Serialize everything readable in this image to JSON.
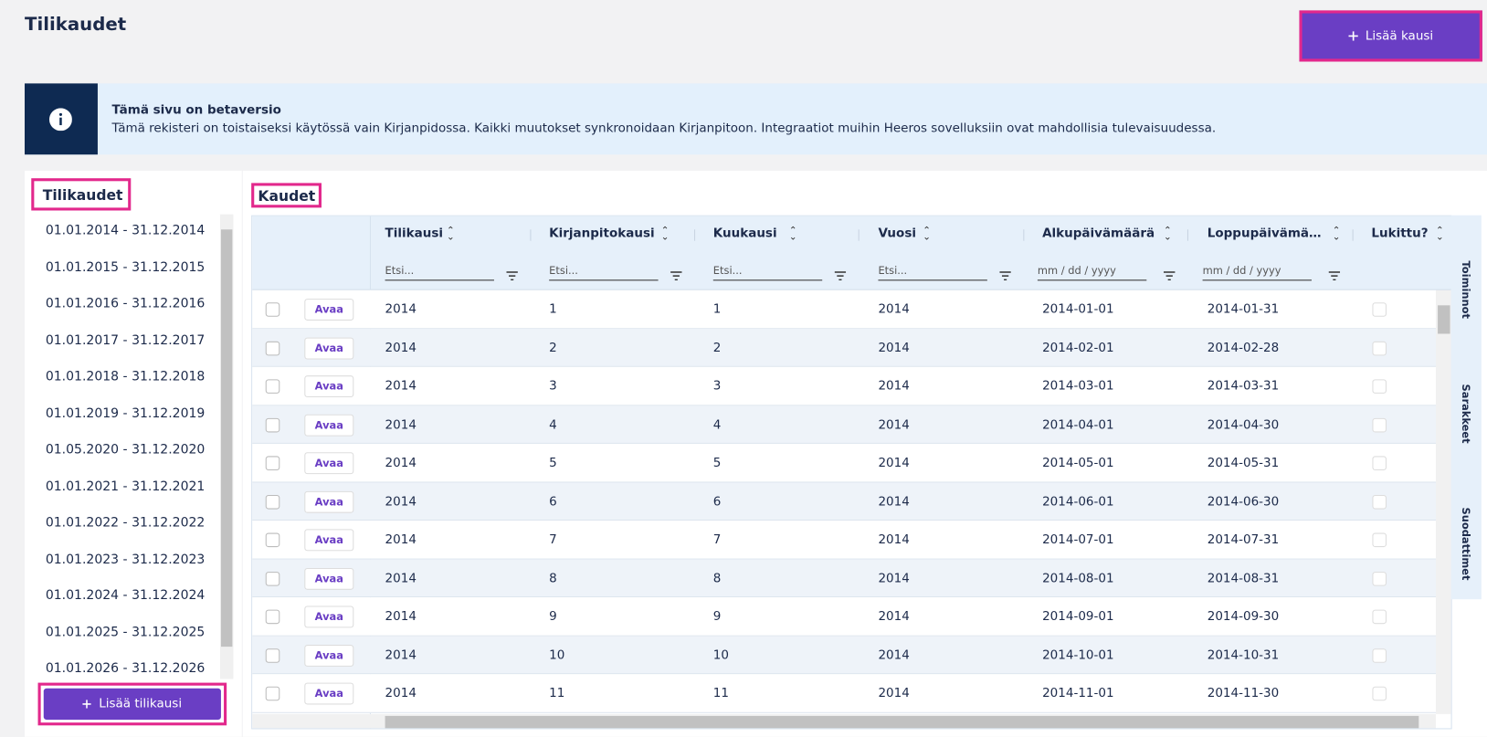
{
  "header": {
    "title": "Tilikaudet",
    "add_button": "Lisää kausi"
  },
  "notice": {
    "title": "Tämä sivu on betaversio",
    "text": "Tämä rekisteri on toistaiseksi käytössä vain Kirjanpidossa. Kaikki muutokset synkronoidaan Kirjanpitoon. Integraatiot muihin Heeros sovelluksiin ovat mahdollisia tulevaisuudessa."
  },
  "periods_panel": {
    "title": "Tilikaudet",
    "items": [
      "01.01.2014 - 31.12.2014",
      "01.01.2015 - 31.12.2015",
      "01.01.2016 - 31.12.2016",
      "01.01.2017 - 31.12.2017",
      "01.01.2018 - 31.12.2018",
      "01.01.2019 - 31.12.2019",
      "01.05.2020 - 31.12.2020",
      "01.01.2021 - 31.12.2021",
      "01.01.2022 - 31.12.2022",
      "01.01.2023 - 31.12.2023",
      "01.01.2024 - 31.12.2024",
      "01.01.2025 - 31.12.2025",
      "01.01.2026 - 31.12.2026"
    ],
    "add_button": "Lisää tilikausi"
  },
  "table_panel": {
    "title": "Kaudet",
    "columns": [
      "Tilikausi",
      "Kirjanpitokausi",
      "Kuukausi",
      "Vuosi",
      "Alkupäivämäärä",
      "Loppupäivämä…",
      "Lukittu?"
    ],
    "filter_placeholder": "Etsi...",
    "date_placeholder": "mm / dd / yyyy",
    "open_button": "Avaa",
    "rows": [
      [
        2014,
        1,
        1,
        2014,
        "2014-01-01",
        "2014-01-31"
      ],
      [
        2014,
        2,
        2,
        2014,
        "2014-02-01",
        "2014-02-28"
      ],
      [
        2014,
        3,
        3,
        2014,
        "2014-03-01",
        "2014-03-31"
      ],
      [
        2014,
        4,
        4,
        2014,
        "2014-04-01",
        "2014-04-30"
      ],
      [
        2014,
        5,
        5,
        2014,
        "2014-05-01",
        "2014-05-31"
      ],
      [
        2014,
        6,
        6,
        2014,
        "2014-06-01",
        "2014-06-30"
      ],
      [
        2014,
        7,
        7,
        2014,
        "2014-07-01",
        "2014-07-31"
      ],
      [
        2014,
        8,
        8,
        2014,
        "2014-08-01",
        "2014-08-31"
      ],
      [
        2014,
        9,
        9,
        2014,
        "2014-09-01",
        "2014-09-30"
      ],
      [
        2014,
        10,
        10,
        2014,
        "2014-10-01",
        "2014-10-31"
      ],
      [
        2014,
        11,
        11,
        2014,
        "2014-11-01",
        "2014-11-30"
      ]
    ]
  },
  "side_tabs": [
    "Toiminnot",
    "Sarakkeet",
    "Suodattimet"
  ]
}
